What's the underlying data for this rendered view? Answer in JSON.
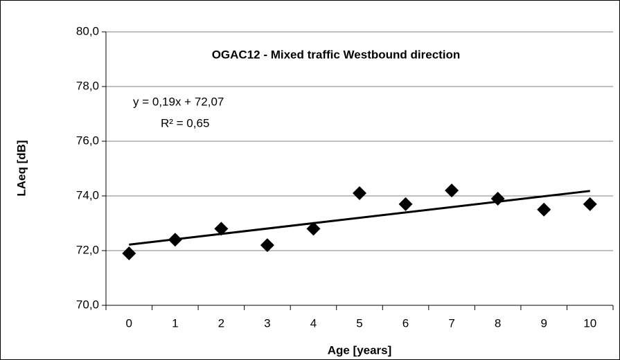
{
  "chart_data": {
    "type": "scatter",
    "title": "OGAC12 -  Mixed traffic Westbound direction",
    "annotations": [
      "y = 0,19x + 72,07",
      "R² = 0,65"
    ],
    "xlabel": "Age [years]",
    "ylabel": "LAeq [dB]",
    "categories": [
      "0",
      "1",
      "2",
      "3",
      "4",
      "5",
      "6",
      "7",
      "8",
      "9",
      "10"
    ],
    "series": [
      {
        "name": null,
        "color": "#000000",
        "values": [
          71.9,
          72.4,
          72.8,
          72.2,
          72.8,
          74.1,
          73.7,
          74.2,
          73.9,
          73.5,
          73.7
        ]
      }
    ],
    "trendline": true,
    "ylim": [
      70,
      80
    ],
    "yticks": [
      {
        "value": 70,
        "label": "70,0"
      },
      {
        "value": 72,
        "label": "72,0"
      },
      {
        "value": 74,
        "label": "74,0"
      },
      {
        "value": 76,
        "label": "76,0"
      },
      {
        "value": 78,
        "label": "78,0"
      },
      {
        "value": 80,
        "label": "80,0"
      }
    ],
    "grid": true
  }
}
